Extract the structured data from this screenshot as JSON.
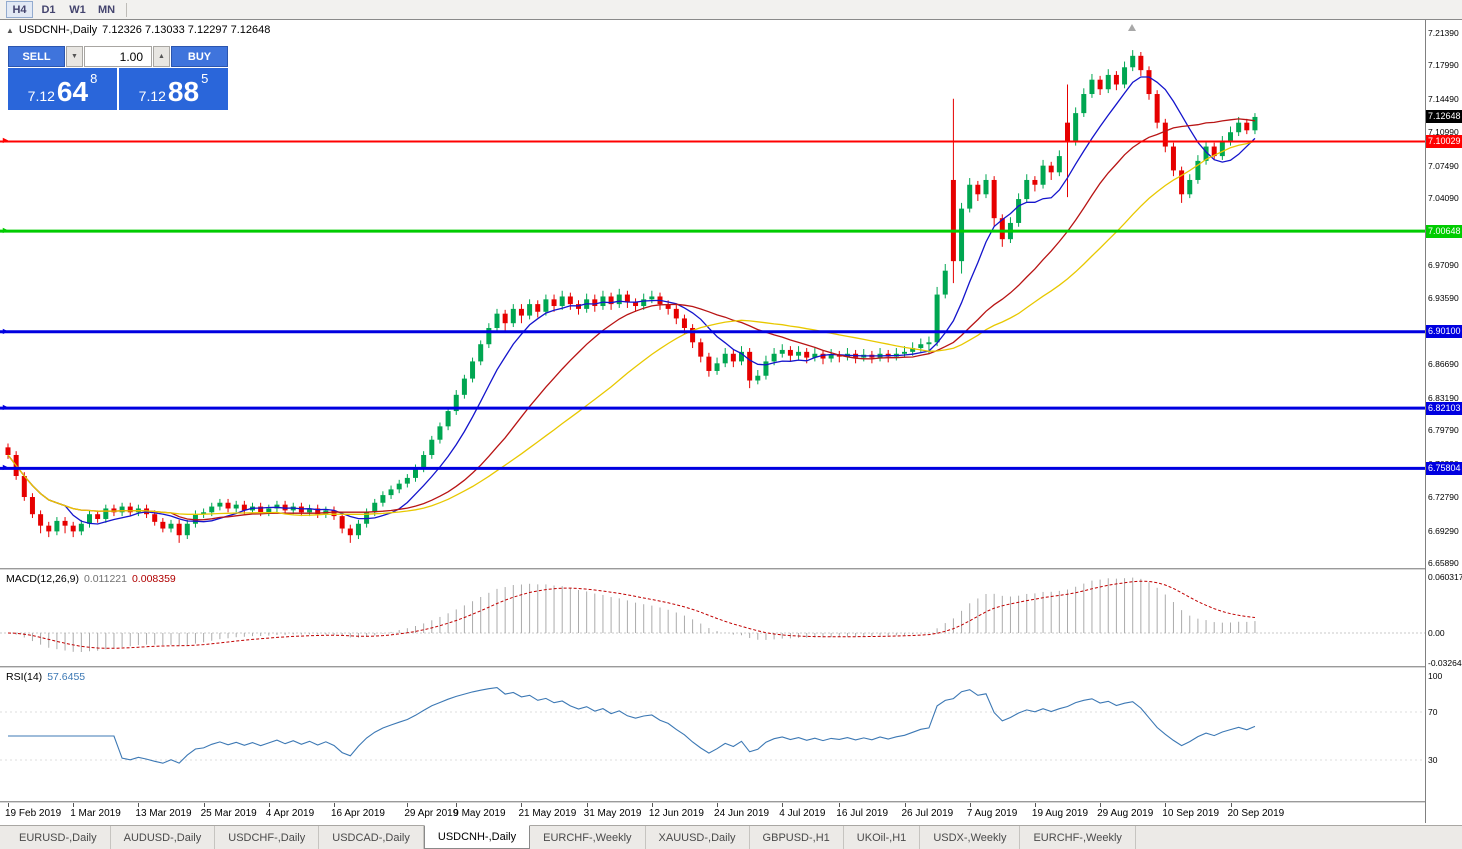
{
  "toolbar": {
    "timeframes": [
      {
        "label": "H4",
        "active": true
      },
      {
        "label": "D1",
        "active": false
      },
      {
        "label": "W1",
        "active": false
      },
      {
        "label": "MN",
        "active": false
      }
    ]
  },
  "header": {
    "symbol_title": "USDCNH-,Daily",
    "ohlc": "7.12326 7.13033 7.12297 7.12648"
  },
  "trade_panel": {
    "sell_label": "SELL",
    "buy_label": "BUY",
    "lot": "1.00",
    "sell_big": "7.12",
    "sell_pips": "64",
    "sell_sup": "8",
    "buy_big": "7.12",
    "buy_pips": "88",
    "buy_sup": "5"
  },
  "macd_panel": {
    "name": "MACD(12,26,9)",
    "value_main": "0.011221",
    "value_signal": "0.008359",
    "scale": [
      {
        "label": "0.060317",
        "value": 0.060317
      },
      {
        "label": "0.00",
        "value": 0
      },
      {
        "label": "-0.032648",
        "value": -0.032648
      }
    ]
  },
  "rsi_panel": {
    "name": "RSI(14)",
    "value": "57.6455",
    "scale": [
      {
        "label": "100",
        "value": 100
      },
      {
        "label": "70",
        "value": 70
      },
      {
        "label": "30",
        "value": 30
      }
    ]
  },
  "tabs": {
    "active_index": 4,
    "items": [
      "EURUSD-,Daily",
      "AUDUSD-,Daily",
      "USDCHF-,Daily",
      "USDCAD-,Daily",
      "USDCNH-,Daily",
      "EURCHF-,Weekly",
      "XAUUSD-,Daily",
      "GBPUSD-,H1",
      "UKOil-,H1",
      "USDX-,Weekly",
      "EURCHF-,Weekly"
    ]
  },
  "chart_data": {
    "type": "candlestick",
    "symbol": "USDCNH-",
    "timeframe": "Daily",
    "y_axis": {
      "min": 6.6589,
      "max": 7.2139,
      "tick_labels": [
        "7.21390",
        "7.17990",
        "7.14490",
        "7.10990",
        "7.07490",
        "7.04090",
        "7.00590",
        "6.97090",
        "6.93590",
        "6.90190",
        "6.86690",
        "6.83190",
        "6.79790",
        "6.76290",
        "6.72790",
        "6.69290",
        "6.65890"
      ]
    },
    "x_axis": {
      "labels": [
        {
          "t": "19 Feb 2019",
          "i": 0
        },
        {
          "t": "1 Mar 2019",
          "i": 8
        },
        {
          "t": "13 Mar 2019",
          "i": 16
        },
        {
          "t": "25 Mar 2019",
          "i": 24
        },
        {
          "t": "4 Apr 2019",
          "i": 32
        },
        {
          "t": "16 Apr 2019",
          "i": 40
        },
        {
          "t": "29 Apr 2019",
          "i": 49
        },
        {
          "t": "9 May 2019",
          "i": 55
        },
        {
          "t": "21 May 2019",
          "i": 63
        },
        {
          "t": "31 May 2019",
          "i": 71
        },
        {
          "t": "12 Jun 2019",
          "i": 79
        },
        {
          "t": "24 Jun 2019",
          "i": 87
        },
        {
          "t": "4 Jul 2019",
          "i": 95
        },
        {
          "t": "16 Jul 2019",
          "i": 102
        },
        {
          "t": "26 Jul 2019",
          "i": 110
        },
        {
          "t": "7 Aug 2019",
          "i": 118
        },
        {
          "t": "19 Aug 2019",
          "i": 126
        },
        {
          "t": "29 Aug 2019",
          "i": 134
        },
        {
          "t": "10 Sep 2019",
          "i": 142
        },
        {
          "t": "20 Sep 2019",
          "i": 150
        }
      ]
    },
    "candles": [
      [
        6.78,
        6.784,
        6.768,
        6.772
      ],
      [
        6.772,
        6.776,
        6.746,
        6.75
      ],
      [
        6.75,
        6.754,
        6.724,
        6.728
      ],
      [
        6.728,
        6.732,
        6.706,
        6.71
      ],
      [
        6.71,
        6.714,
        6.69,
        6.698
      ],
      [
        6.698,
        6.702,
        6.686,
        6.692
      ],
      [
        6.692,
        6.707,
        6.688,
        6.703
      ],
      [
        6.703,
        6.707,
        6.69,
        6.698
      ],
      [
        6.698,
        6.702,
        6.686,
        6.692
      ],
      [
        6.692,
        6.704,
        6.688,
        6.7
      ],
      [
        6.7,
        6.714,
        6.696,
        6.71
      ],
      [
        6.71,
        6.714,
        6.701,
        6.705
      ],
      [
        6.705,
        6.72,
        6.701,
        6.716
      ],
      [
        6.716,
        6.72,
        6.708,
        6.712
      ],
      [
        6.712,
        6.722,
        6.708,
        6.718
      ],
      [
        6.718,
        6.722,
        6.708,
        6.712
      ],
      [
        6.712,
        6.72,
        6.708,
        6.716
      ],
      [
        6.716,
        6.72,
        6.706,
        6.71
      ],
      [
        6.71,
        6.714,
        6.698,
        6.702
      ],
      [
        6.702,
        6.706,
        6.691,
        6.695
      ],
      [
        6.695,
        6.704,
        6.691,
        6.7
      ],
      [
        6.7,
        6.704,
        6.68,
        6.688
      ],
      [
        6.688,
        6.704,
        6.684,
        6.7
      ],
      [
        6.7,
        6.714,
        6.696,
        6.71
      ],
      [
        6.71,
        6.716,
        6.706,
        6.712
      ],
      [
        6.712,
        6.722,
        6.708,
        6.718
      ],
      [
        6.718,
        6.726,
        6.714,
        6.722
      ],
      [
        6.722,
        6.726,
        6.712,
        6.716
      ],
      [
        6.716,
        6.724,
        6.712,
        6.72
      ],
      [
        6.72,
        6.724,
        6.71,
        6.714
      ],
      [
        6.714,
        6.722,
        6.71,
        6.718
      ],
      [
        6.718,
        6.722,
        6.708,
        6.712
      ],
      [
        6.712,
        6.72,
        6.708,
        6.716
      ],
      [
        6.716,
        6.724,
        6.712,
        6.72
      ],
      [
        6.72,
        6.724,
        6.71,
        6.714
      ],
      [
        6.714,
        6.722,
        6.71,
        6.718
      ],
      [
        6.718,
        6.722,
        6.708,
        6.712
      ],
      [
        6.712,
        6.72,
        6.708,
        6.716
      ],
      [
        6.716,
        6.72,
        6.706,
        6.71
      ],
      [
        6.71,
        6.718,
        6.706,
        6.714
      ],
      [
        6.714,
        6.718,
        6.704,
        6.708
      ],
      [
        6.708,
        6.712,
        6.69,
        6.695
      ],
      [
        6.695,
        6.699,
        6.68,
        6.688
      ],
      [
        6.688,
        6.704,
        6.684,
        6.7
      ],
      [
        6.7,
        6.716,
        6.696,
        6.712
      ],
      [
        6.712,
        6.726,
        6.708,
        6.722
      ],
      [
        6.722,
        6.734,
        6.718,
        6.73
      ],
      [
        6.73,
        6.74,
        6.726,
        6.736
      ],
      [
        6.736,
        6.746,
        6.732,
        6.742
      ],
      [
        6.742,
        6.752,
        6.738,
        6.748
      ],
      [
        6.748,
        6.762,
        6.744,
        6.758
      ],
      [
        6.758,
        6.776,
        6.754,
        6.772
      ],
      [
        6.772,
        6.792,
        6.768,
        6.788
      ],
      [
        6.788,
        6.806,
        6.784,
        6.802
      ],
      [
        6.802,
        6.822,
        6.798,
        6.818
      ],
      [
        6.818,
        6.84,
        6.814,
        6.835
      ],
      [
        6.835,
        6.856,
        6.831,
        6.852
      ],
      [
        6.852,
        6.874,
        6.848,
        6.87
      ],
      [
        6.87,
        6.892,
        6.866,
        6.888
      ],
      [
        6.888,
        6.91,
        6.884,
        6.905
      ],
      [
        6.905,
        6.925,
        6.901,
        6.92
      ],
      [
        6.92,
        6.924,
        6.902,
        6.91
      ],
      [
        6.91,
        6.93,
        6.906,
        6.925
      ],
      [
        6.925,
        6.93,
        6.91,
        6.918
      ],
      [
        6.918,
        6.935,
        6.914,
        6.93
      ],
      [
        6.93,
        6.934,
        6.916,
        6.922
      ],
      [
        6.922,
        6.94,
        6.918,
        6.935
      ],
      [
        6.935,
        6.94,
        6.922,
        6.928
      ],
      [
        6.928,
        6.944,
        6.924,
        6.938
      ],
      [
        6.938,
        6.942,
        6.924,
        6.93
      ],
      [
        6.93,
        6.934,
        6.919,
        6.925
      ],
      [
        6.925,
        6.941,
        6.921,
        6.935
      ],
      [
        6.935,
        6.94,
        6.922,
        6.928
      ],
      [
        6.928,
        6.944,
        6.924,
        6.938
      ],
      [
        6.938,
        6.942,
        6.924,
        6.93
      ],
      [
        6.93,
        6.946,
        6.926,
        6.94
      ],
      [
        6.94,
        6.944,
        6.926,
        6.932
      ],
      [
        6.932,
        6.936,
        6.922,
        6.928
      ],
      [
        6.928,
        6.941,
        6.924,
        6.935
      ],
      [
        6.935,
        6.944,
        6.931,
        6.938
      ],
      [
        6.938,
        6.942,
        6.924,
        6.93
      ],
      [
        6.93,
        6.934,
        6.919,
        6.925
      ],
      [
        6.925,
        6.929,
        6.909,
        6.915
      ],
      [
        6.915,
        6.919,
        6.899,
        6.905
      ],
      [
        6.905,
        6.909,
        6.884,
        6.89
      ],
      [
        6.89,
        6.894,
        6.869,
        6.875
      ],
      [
        6.875,
        6.879,
        6.854,
        6.86
      ],
      [
        6.86,
        6.874,
        6.856,
        6.868
      ],
      [
        6.868,
        6.884,
        6.864,
        6.878
      ],
      [
        6.878,
        6.882,
        6.864,
        6.87
      ],
      [
        6.87,
        6.886,
        6.866,
        6.88
      ],
      [
        6.88,
        6.884,
        6.842,
        6.85
      ],
      [
        6.85,
        6.861,
        6.846,
        6.855
      ],
      [
        6.855,
        6.876,
        6.851,
        6.87
      ],
      [
        6.87,
        6.884,
        6.866,
        6.878
      ],
      [
        6.878,
        6.888,
        6.874,
        6.882
      ],
      [
        6.882,
        6.886,
        6.87,
        6.876
      ],
      [
        6.876,
        6.886,
        6.872,
        6.88
      ],
      [
        6.88,
        6.884,
        6.868,
        6.874
      ],
      [
        6.874,
        6.884,
        6.87,
        6.878
      ],
      [
        6.878,
        6.882,
        6.867,
        6.873
      ],
      [
        6.873,
        6.883,
        6.869,
        6.877
      ],
      [
        6.877,
        6.881,
        6.869,
        6.875
      ],
      [
        6.875,
        6.884,
        6.871,
        6.878
      ],
      [
        6.878,
        6.882,
        6.868,
        6.874
      ],
      [
        6.874,
        6.883,
        6.87,
        6.877
      ],
      [
        6.877,
        6.881,
        6.868,
        6.874
      ],
      [
        6.874,
        6.884,
        6.87,
        6.878
      ],
      [
        6.878,
        6.882,
        6.869,
        6.875
      ],
      [
        6.875,
        6.884,
        6.871,
        6.878
      ],
      [
        6.878,
        6.886,
        6.874,
        6.88
      ],
      [
        6.88,
        6.89,
        6.876,
        6.884
      ],
      [
        6.884,
        6.894,
        6.88,
        6.888
      ],
      [
        6.888,
        6.896,
        6.878,
        6.89
      ],
      [
        6.89,
        6.948,
        6.886,
        6.94
      ],
      [
        6.94,
        6.972,
        6.936,
        6.965
      ],
      [
        7.06,
        7.145,
        6.952,
        6.975
      ],
      [
        6.975,
        7.036,
        6.962,
        7.03
      ],
      [
        7.03,
        7.062,
        7.026,
        7.055
      ],
      [
        7.055,
        7.059,
        7.038,
        7.045
      ],
      [
        7.045,
        7.066,
        7.041,
        7.06
      ],
      [
        7.06,
        7.064,
        7.012,
        7.02
      ],
      [
        7.02,
        7.024,
        6.99,
        6.998
      ],
      [
        6.998,
        7.021,
        6.994,
        7.015
      ],
      [
        7.015,
        7.046,
        7.011,
        7.04
      ],
      [
        7.04,
        7.066,
        7.036,
        7.06
      ],
      [
        7.06,
        7.064,
        7.048,
        7.055
      ],
      [
        7.055,
        7.081,
        7.051,
        7.075
      ],
      [
        7.075,
        7.079,
        7.06,
        7.068
      ],
      [
        7.068,
        7.091,
        7.064,
        7.085
      ],
      [
        7.12,
        7.16,
        7.042,
        7.1
      ],
      [
        7.1,
        7.136,
        7.096,
        7.13
      ],
      [
        7.13,
        7.156,
        7.126,
        7.15
      ],
      [
        7.15,
        7.171,
        7.146,
        7.165
      ],
      [
        7.165,
        7.169,
        7.149,
        7.155
      ],
      [
        7.155,
        7.176,
        7.151,
        7.17
      ],
      [
        7.17,
        7.174,
        7.154,
        7.16
      ],
      [
        7.16,
        7.184,
        7.156,
        7.178
      ],
      [
        7.178,
        7.196,
        7.174,
        7.19
      ],
      [
        7.19,
        7.194,
        7.169,
        7.175
      ],
      [
        7.175,
        7.179,
        7.144,
        7.15
      ],
      [
        7.15,
        7.154,
        7.114,
        7.12
      ],
      [
        7.12,
        7.124,
        7.089,
        7.095
      ],
      [
        7.095,
        7.099,
        7.064,
        7.07
      ],
      [
        7.07,
        7.074,
        7.036,
        7.045
      ],
      [
        7.045,
        7.066,
        7.041,
        7.06
      ],
      [
        7.06,
        7.086,
        7.056,
        7.08
      ],
      [
        7.08,
        7.101,
        7.076,
        7.095
      ],
      [
        7.095,
        7.099,
        7.081,
        7.085
      ],
      [
        7.085,
        7.106,
        7.081,
        7.1
      ],
      [
        7.1,
        7.116,
        7.096,
        7.11
      ],
      [
        7.11,
        7.126,
        7.106,
        7.12
      ],
      [
        7.12,
        7.124,
        7.108,
        7.112
      ],
      [
        7.112,
        7.13,
        7.108,
        7.126
      ]
    ],
    "colors": {
      "up": "#00A651",
      "down": "#E60000"
    },
    "moving_averages": [
      {
        "type": "sma",
        "period": 8,
        "color": "#1414CC"
      },
      {
        "type": "sma",
        "period": 21,
        "color": "#B81414"
      },
      {
        "type": "sma",
        "period": 34,
        "color": "#E8C800"
      }
    ],
    "horizontal_levels": [
      {
        "label": "7.10029",
        "value": 7.10029,
        "color": "#FF0000",
        "width": 2
      },
      {
        "label": "7.00648",
        "value": 7.00648,
        "color": "#00CC00",
        "width": 3
      },
      {
        "label": "6.90100",
        "value": 6.901,
        "color": "#0000E0",
        "width": 3
      },
      {
        "label": "6.82103",
        "value": 6.82103,
        "color": "#0000E0",
        "width": 3
      },
      {
        "label": "6.75804",
        "value": 6.75804,
        "color": "#0000E0",
        "width": 3
      }
    ],
    "current_price": {
      "label": "7.12648",
      "value": 7.12648
    },
    "macd": {
      "fast": 12,
      "slow": 26,
      "signal": 9,
      "bar_color": "#ABABAB",
      "signal_color": "#C00000",
      "scale_max": 0.060317
    },
    "rsi": {
      "period": 14,
      "color": "#3C78B4"
    }
  }
}
